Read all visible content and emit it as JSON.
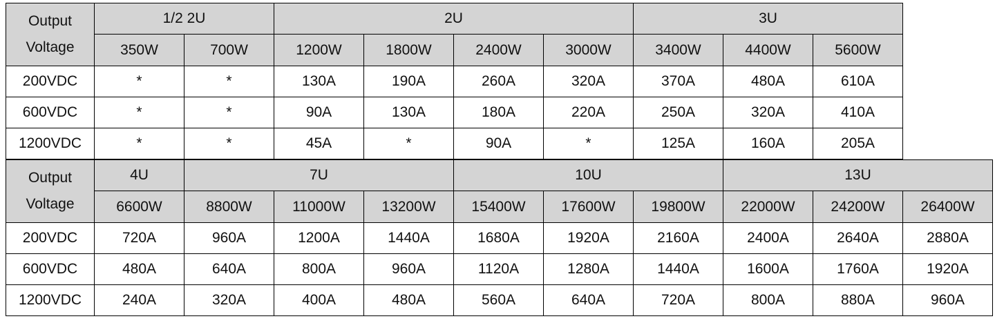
{
  "table1": {
    "label_line1": "Output",
    "label_line2": "Voltage",
    "groups": [
      "1/2 2U",
      "2U",
      "3U"
    ],
    "powers": [
      "350W",
      "700W",
      "1200W",
      "1800W",
      "2400W",
      "3000W",
      "3400W",
      "4400W",
      "5600W"
    ],
    "rows": [
      {
        "voltage": "200VDC",
        "cells": [
          "*",
          "*",
          "130A",
          "190A",
          "260A",
          "320A",
          "370A",
          "480A",
          "610A"
        ]
      },
      {
        "voltage": "600VDC",
        "cells": [
          "*",
          "*",
          "90A",
          "130A",
          "180A",
          "220A",
          "250A",
          "320A",
          "410A"
        ]
      },
      {
        "voltage": "1200VDC",
        "cells": [
          "*",
          "*",
          "45A",
          "*",
          "90A",
          "*",
          "125A",
          "160A",
          "205A"
        ]
      }
    ]
  },
  "table2": {
    "label_line1": "Output",
    "label_line2": "Voltage",
    "groups": [
      "4U",
      "7U",
      "10U",
      "13U"
    ],
    "powers": [
      "6600W",
      "8800W",
      "11000W",
      "13200W",
      "15400W",
      "17600W",
      "19800W",
      "22000W",
      "24200W",
      "26400W"
    ],
    "rows": [
      {
        "voltage": "200VDC",
        "cells": [
          "720A",
          "960A",
          "1200A",
          "1440A",
          "1680A",
          "1920A",
          "2160A",
          "2400A",
          "2640A",
          "2880A"
        ]
      },
      {
        "voltage": "600VDC",
        "cells": [
          "480A",
          "640A",
          "800A",
          "960A",
          "1120A",
          "1280A",
          "1440A",
          "1600A",
          "1760A",
          "1920A"
        ]
      },
      {
        "voltage": "1200VDC",
        "cells": [
          "240A",
          "320A",
          "400A",
          "480A",
          "560A",
          "640A",
          "720A",
          "800A",
          "880A",
          "960A"
        ]
      }
    ]
  },
  "colors": {
    "header_bg": "#d4d4d4",
    "value_text": "#2323d6",
    "border": "#000000"
  }
}
